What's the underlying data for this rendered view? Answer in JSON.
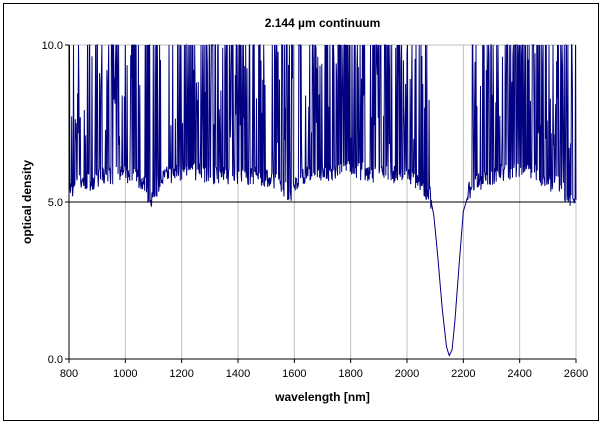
{
  "chart_data": {
    "type": "line",
    "title": "2.144 µm continuum",
    "xlabel": "wavelength [nm]",
    "ylabel": "optical density",
    "xlim": [
      800,
      2600
    ],
    "ylim": [
      0,
      10
    ],
    "x_ticks": [
      "800",
      "1000",
      "1200",
      "1400",
      "1600",
      "1800",
      "2000",
      "2200",
      "2400",
      "2600"
    ],
    "y_ticks": [
      "0.0",
      "5.0",
      "10.0"
    ],
    "grid": "vertical",
    "reference_line_y": 5.0,
    "legend": "none",
    "colors": {
      "series": "#000080",
      "grid": "#c0c0c0",
      "axis": "#000000"
    },
    "series": [
      {
        "x": [
          800,
          830,
          850,
          880,
          900,
          950,
          1000,
          1040,
          1060,
          1075,
          1085,
          1090,
          1100,
          1120,
          1150,
          1200,
          1250,
          1300,
          1350,
          1400,
          1450,
          1500,
          1540,
          1560,
          1575,
          1585,
          1595,
          1610,
          1650,
          1700,
          1750,
          1800,
          1850,
          1900,
          1950,
          2000,
          2030,
          2060,
          2080,
          2095,
          2110,
          2125,
          2140,
          2150,
          2160,
          2170,
          2185,
          2200,
          2220,
          2250,
          2300,
          2350,
          2400,
          2450,
          2500,
          2550,
          2580,
          2600
        ],
        "y": [
          5.3,
          5.5,
          5.6,
          5.6,
          5.7,
          5.8,
          5.8,
          5.7,
          5.6,
          5.4,
          5.0,
          4.8,
          5.1,
          5.6,
          5.8,
          5.9,
          5.9,
          5.8,
          5.8,
          5.8,
          5.8,
          5.7,
          5.6,
          5.4,
          5.2,
          5.0,
          5.2,
          5.6,
          5.8,
          5.9,
          5.9,
          6.0,
          5.9,
          5.8,
          5.8,
          5.8,
          5.6,
          5.4,
          5.2,
          4.6,
          3.2,
          1.6,
          0.4,
          0.1,
          0.3,
          1.2,
          3.0,
          4.7,
          5.3,
          5.6,
          5.7,
          5.9,
          6.0,
          5.9,
          5.6,
          5.4,
          5.0,
          4.8
        ]
      }
    ]
  }
}
